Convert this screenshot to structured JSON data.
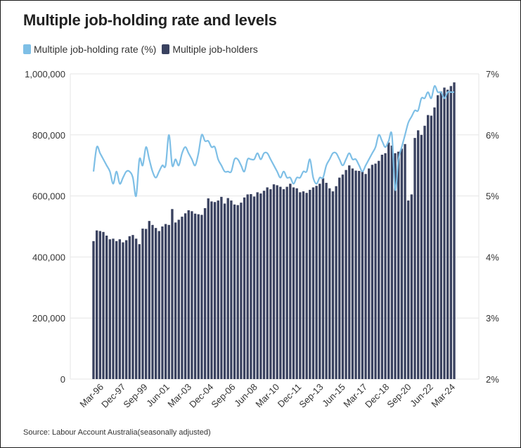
{
  "title": "Multiple job-holding rate and levels",
  "source": "Source: Labour Account Australia(seasonally adjusted)",
  "colors": {
    "bars": "#3a4260",
    "line": "#7ebfe6",
    "grid": "#e6e6e6"
  },
  "chart_data": {
    "type": "bar+line",
    "title": "Multiple job-holding rate and levels",
    "legend": [
      "Multiple job-holding rate (%)",
      "Multiple job-holders"
    ],
    "legend_position": "top-left",
    "x_tick_labels": [
      "Mar-96",
      "Dec-97",
      "Sep-99",
      "Jun-01",
      "Mar-03",
      "Dec-04",
      "Sep-06",
      "Jun-08",
      "Mar-10",
      "Dec-11",
      "Sep-13",
      "Jun-15",
      "Mar-17",
      "Dec-18",
      "Sep-20",
      "Jun-22",
      "Mar-24"
    ],
    "x_range": [
      "Mar-96",
      "Mar-24"
    ],
    "y_left": {
      "range": [
        0,
        1000000
      ],
      "ticks": [
        "0",
        "200,000",
        "400,000",
        "600,000",
        "800,000",
        "1,000,000"
      ]
    },
    "y_right": {
      "range": [
        2,
        7
      ],
      "ticks": [
        "2%",
        "3%",
        "4%",
        "5%",
        "6%",
        "7%"
      ]
    },
    "grid": true,
    "series": [
      {
        "name": "Multiple job-holders",
        "type": "bar",
        "axis": "left",
        "values": [
          452000,
          487000,
          485000,
          482000,
          470000,
          458000,
          460000,
          452000,
          458000,
          448000,
          455000,
          468000,
          472000,
          460000,
          442000,
          493000,
          492000,
          518000,
          505000,
          495000,
          485000,
          500000,
          508000,
          505000,
          557000,
          513000,
          522000,
          532000,
          543000,
          553000,
          550000,
          542000,
          540000,
          538000,
          560000,
          592000,
          582000,
          580000,
          585000,
          597000,
          575000,
          593000,
          585000,
          572000,
          570000,
          578000,
          595000,
          605000,
          606000,
          598000,
          612000,
          608000,
          617000,
          628000,
          622000,
          638000,
          635000,
          630000,
          622000,
          630000,
          640000,
          628000,
          625000,
          612000,
          615000,
          610000,
          620000,
          628000,
          633000,
          640000,
          658000,
          643000,
          625000,
          615000,
          632000,
          660000,
          670000,
          685000,
          700000,
          690000,
          683000,
          682000,
          680000,
          672000,
          690000,
          702000,
          706000,
          715000,
          735000,
          740000,
          775000,
          765000,
          740000,
          745000,
          755000,
          770000,
          585000,
          605000,
          790000,
          815000,
          800000,
          830000,
          865000,
          863000,
          890000,
          930000,
          942000,
          955000,
          948000,
          960000,
          972000
        ]
      },
      {
        "name": "Multiple job-holding rate (%)",
        "type": "line",
        "axis": "right",
        "x_start_index": 0,
        "x_end_index": 110,
        "values": [
          5.4,
          5.8,
          5.7,
          5.6,
          5.5,
          5.4,
          5.2,
          5.4,
          5.2,
          5.3,
          5.4,
          5.4,
          5.3,
          5.0,
          5.6,
          5.5,
          5.8,
          5.6,
          5.4,
          5.3,
          5.4,
          5.5,
          5.5,
          6.0,
          5.5,
          5.6,
          5.5,
          5.7,
          5.8,
          5.7,
          5.6,
          5.5,
          5.7,
          6.0,
          5.9,
          5.9,
          5.8,
          5.8,
          5.6,
          5.5,
          5.4,
          5.4,
          5.4,
          5.6,
          5.6,
          5.5,
          5.4,
          5.6,
          5.6,
          5.6,
          5.7,
          5.6,
          5.7,
          5.7,
          5.6,
          5.5,
          5.4,
          5.3,
          5.4,
          5.3,
          5.3,
          5.2,
          5.3,
          5.3,
          5.4,
          5.4,
          5.6,
          5.3,
          5.2,
          5.3,
          5.3,
          5.5,
          5.6,
          5.7,
          5.7,
          5.6,
          5.5,
          5.6,
          5.7,
          5.6,
          5.6,
          5.5,
          5.4,
          5.5,
          5.6,
          5.7,
          5.8,
          6.0,
          5.9,
          5.8,
          5.9,
          6.0,
          5.1,
          5.6,
          5.8,
          6.0,
          6.2,
          6.3,
          6.4,
          6.4,
          6.6,
          6.6,
          6.7,
          6.6,
          6.8,
          6.7,
          6.7,
          6.6,
          6.7,
          6.7,
          6.7
        ]
      }
    ]
  }
}
